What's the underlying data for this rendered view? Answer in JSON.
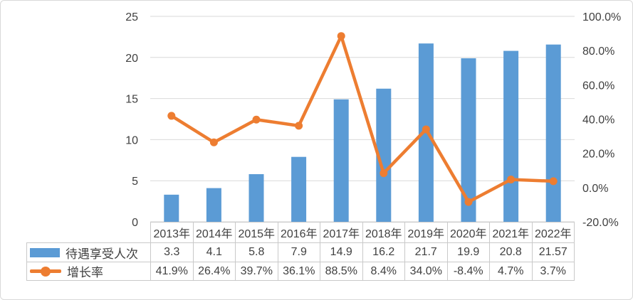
{
  "frame": {
    "background": "#ffffff",
    "border_color": "#d9d9d9"
  },
  "chart_data": {
    "type": "combo",
    "title": "",
    "categories": [
      "2013年",
      "2014年",
      "2015年",
      "2016年",
      "2017年",
      "2018年",
      "2019年",
      "2020年",
      "2021年",
      "2022年"
    ],
    "series": [
      {
        "name": "待遇享受人次",
        "type": "bar",
        "axis": "left",
        "color": "#5B9BD5",
        "values": [
          3.3,
          4.1,
          5.8,
          7.9,
          14.9,
          16.2,
          21.7,
          19.9,
          20.8,
          21.57
        ],
        "labels": [
          "3.3",
          "4.1",
          "5.8",
          "7.9",
          "14.9",
          "16.2",
          "21.7",
          "19.9",
          "20.8",
          "21.57"
        ]
      },
      {
        "name": "增长率",
        "type": "line",
        "axis": "right",
        "color": "#ED7D31",
        "values": [
          41.9,
          26.4,
          39.7,
          36.1,
          88.5,
          8.4,
          34.0,
          -8.4,
          4.7,
          3.7
        ],
        "labels": [
          "41.9%",
          "26.4%",
          "39.7%",
          "36.1%",
          "88.5%",
          "8.4%",
          "34.0%",
          "-8.4%",
          "4.7%",
          "3.7%"
        ]
      }
    ],
    "left_axis": {
      "min": 0,
      "max": 25,
      "ticks": [
        0,
        5,
        10,
        15,
        20,
        25
      ],
      "tick_labels": [
        "0",
        "5",
        "10",
        "15",
        "20",
        "25"
      ]
    },
    "right_axis": {
      "min": -20,
      "max": 100,
      "ticks": [
        -20,
        0,
        20,
        40,
        60,
        80,
        100
      ],
      "tick_labels": [
        "-20.0%",
        "0.0%",
        "20.0%",
        "40.0%",
        "60.0%",
        "80.0%",
        "100.0%"
      ]
    },
    "grid": true,
    "grid_color": "#d9d9d9",
    "text_color": "#404040",
    "legend_position": "table-left"
  }
}
